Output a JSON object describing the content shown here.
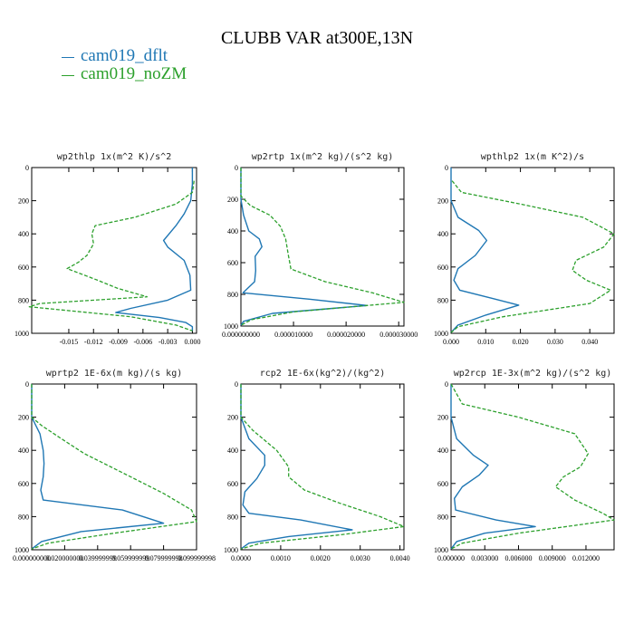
{
  "figure": {
    "title": "CLUBB VAR at300E,13N",
    "legend": [
      {
        "label": "cam019_dflt",
        "color": "#1f77b4"
      },
      {
        "label": "cam019_noZM",
        "color": "#2ca02c"
      }
    ]
  },
  "chart_data": [
    {
      "type": "line",
      "title": "wp2thlp  1x(m^2 K)/s^2",
      "xlim": [
        -0.0195,
        0.0005
      ],
      "ylim": [
        1000,
        0
      ],
      "xticks": [
        -0.015,
        -0.012,
        -0.009,
        -0.006,
        -0.003,
        0.0
      ],
      "xtick_labels": [
        "-0.015",
        "-0.012",
        "-0.009",
        "-0.006",
        "-0.003",
        "0.000"
      ],
      "yticks": [
        0,
        200,
        400,
        600,
        800,
        1000
      ],
      "series": [
        {
          "name": "cam019_dflt",
          "x": [
            0.0,
            0.0,
            -0.0002,
            -0.001,
            -0.002,
            -0.0035,
            -0.003,
            -0.001,
            -0.0003,
            -0.0002,
            -0.003,
            -0.0075,
            -0.0093,
            -0.004,
            -0.0008,
            0.0,
            0.0
          ],
          "y": [
            0,
            100,
            200,
            280,
            350,
            440,
            480,
            560,
            650,
            740,
            800,
            850,
            875,
            905,
            935,
            960,
            985
          ]
        },
        {
          "name": "cam019_noZM",
          "x": [
            0.0002,
            0.0,
            -0.002,
            -0.007,
            -0.0118,
            -0.0122,
            -0.012,
            -0.0128,
            -0.0138,
            -0.0152,
            -0.0136,
            -0.0115,
            -0.009,
            -0.0055,
            -0.0185,
            -0.0198,
            -0.0075,
            -0.002,
            0.0
          ],
          "y": [
            80,
            150,
            220,
            300,
            350,
            400,
            460,
            530,
            570,
            610,
            640,
            680,
            730,
            780,
            820,
            840,
            900,
            950,
            985
          ]
        }
      ]
    },
    {
      "type": "line",
      "title": "wp2rtp  1x(m^2 kg)/(s^2 kg)",
      "xlim": [
        0,
        3.1e-05
      ],
      "ylim": [
        1000,
        0
      ],
      "xticks": [
        0,
        1e-05,
        2e-05,
        3e-05
      ],
      "xtick_labels": [
        "0.000000000",
        "0.000010000",
        "0.000020000",
        "0.000030000"
      ],
      "yticks": [
        0,
        200,
        400,
        600,
        800,
        1000
      ],
      "series": [
        {
          "name": "cam019_dflt",
          "x": [
            0,
            0,
            5e-07,
            1.5e-06,
            3.5e-06,
            4e-06,
            2.7e-06,
            2.8e-06,
            2.6e-06,
            4e-07,
            1.3e-05,
            2.4e-05,
            6e-06,
            5e-07,
            0
          ],
          "y": [
            0,
            200,
            300,
            400,
            450,
            500,
            560,
            650,
            720,
            790,
            830,
            870,
            920,
            970,
            995
          ]
        },
        {
          "name": "cam019_noZM",
          "x": [
            0,
            0,
            1.8e-06,
            5.5e-06,
            7.5e-06,
            8.5e-06,
            9e-06,
            9.5e-06,
            1.6e-05,
            2.5e-05,
            3.1e-05,
            1e-05,
            2e-06,
            0
          ],
          "y": [
            0,
            180,
            240,
            300,
            370,
            450,
            550,
            640,
            720,
            790,
            850,
            910,
            960,
            995
          ]
        }
      ]
    },
    {
      "type": "line",
      "title": "wpthlp2  1x(m K^2)/s",
      "xlim": [
        0,
        0.047
      ],
      "ylim": [
        1000,
        0
      ],
      "xticks": [
        0.0,
        0.01,
        0.02,
        0.03,
        0.04
      ],
      "xtick_labels": [
        "0.000",
        "0.010",
        "0.020",
        "0.030",
        "0.040"
      ],
      "yticks": [
        0,
        200,
        400,
        600,
        800,
        1000
      ],
      "series": [
        {
          "name": "cam019_dflt",
          "x": [
            0,
            0,
            0.002,
            0.008,
            0.0103,
            0.007,
            0.002,
            0.0008,
            0.0025,
            0.012,
            0.0195,
            0.01,
            0.002,
            0
          ],
          "y": [
            0,
            200,
            300,
            380,
            440,
            530,
            610,
            680,
            740,
            790,
            830,
            890,
            950,
            995
          ]
        },
        {
          "name": "cam019_noZM",
          "x": [
            0.0003,
            0.003,
            0.02,
            0.038,
            0.047,
            0.044,
            0.036,
            0.035,
            0.039,
            0.046,
            0.04,
            0.015,
            0.002,
            0
          ],
          "y": [
            80,
            150,
            220,
            300,
            400,
            480,
            560,
            620,
            680,
            740,
            820,
            900,
            960,
            995
          ]
        }
      ]
    },
    {
      "type": "line",
      "title": "wprtp2  1E-6x(m kg)/(s kg)",
      "xlim": [
        0,
        0.1
      ],
      "ylim": [
        1000,
        0
      ],
      "xticks": [
        0.0,
        0.02,
        0.04,
        0.06,
        0.08,
        0.1
      ],
      "xtick_labels": [
        "0.000000000",
        "0.020000000",
        "0.039999999",
        "0.059999999",
        "0.079999998",
        "0.099999998"
      ],
      "yticks": [
        0,
        200,
        400,
        600,
        800,
        1000
      ],
      "series": [
        {
          "name": "cam019_dflt",
          "x": [
            0,
            0,
            0.005,
            0.007,
            0.0075,
            0.007,
            0.0055,
            0.007,
            0.055,
            0.08,
            0.03,
            0.006,
            0
          ],
          "y": [
            0,
            200,
            300,
            400,
            480,
            560,
            640,
            700,
            760,
            840,
            890,
            950,
            995
          ]
        },
        {
          "name": "cam019_noZM",
          "x": [
            0,
            0,
            0.006,
            0.018,
            0.032,
            0.048,
            0.064,
            0.08,
            0.097,
            0.1,
            0.05,
            0.01,
            0
          ],
          "y": [
            0,
            200,
            250,
            330,
            420,
            500,
            580,
            660,
            760,
            830,
            900,
            960,
            995
          ]
        }
      ]
    },
    {
      "type": "line",
      "title": "rcp2  1E-6x(kg^2)/(kg^2)",
      "xlim": [
        0,
        0.0041
      ],
      "ylim": [
        1000,
        0
      ],
      "xticks": [
        0.0,
        0.001,
        0.002,
        0.003,
        0.004
      ],
      "xtick_labels": [
        "0.0000",
        "0.0010",
        "0.0020",
        "0.0030",
        "0.0040"
      ],
      "yticks": [
        0,
        200,
        400,
        600,
        800,
        1000
      ],
      "series": [
        {
          "name": "cam019_dflt",
          "x": [
            0,
            0,
            0.0002,
            0.0006,
            0.0006,
            0.0004,
            0.0001,
            5e-05,
            0.0002,
            0.0015,
            0.0028,
            0.0012,
            0.0002,
            0
          ],
          "y": [
            0,
            200,
            330,
            430,
            490,
            570,
            650,
            730,
            780,
            820,
            880,
            920,
            960,
            995
          ]
        },
        {
          "name": "cam019_noZM",
          "x": [
            0,
            0,
            0.0003,
            0.0009,
            0.0012,
            0.0012,
            0.0016,
            0.0025,
            0.0035,
            0.0041,
            0.0025,
            0.0005,
            0
          ],
          "y": [
            0,
            200,
            280,
            400,
            500,
            560,
            640,
            720,
            800,
            860,
            910,
            960,
            995
          ]
        }
      ]
    },
    {
      "type": "line",
      "title": "wp2rcp  1E-3x(m^2 kg)/(s^2 kg)",
      "xlim": [
        0,
        0.0145
      ],
      "ylim": [
        1000,
        0
      ],
      "xticks": [
        0.0,
        0.003,
        0.006,
        0.009,
        0.012
      ],
      "xtick_labels": [
        "0.000000",
        "0.003000",
        "0.006000",
        "0.009000",
        "0.012000"
      ],
      "yticks": [
        0,
        200,
        400,
        600,
        800,
        1000
      ],
      "series": [
        {
          "name": "cam019_dflt",
          "x": [
            0,
            0,
            0.0005,
            0.002,
            0.0033,
            0.0025,
            0.001,
            0.0003,
            0.0004,
            0.004,
            0.0075,
            0.003,
            0.0005,
            0
          ],
          "y": [
            0,
            200,
            330,
            430,
            490,
            550,
            620,
            690,
            760,
            820,
            860,
            900,
            950,
            995
          ]
        },
        {
          "name": "cam019_noZM",
          "x": [
            0,
            0.001,
            0.006,
            0.011,
            0.0122,
            0.0115,
            0.01,
            0.0093,
            0.011,
            0.0135,
            0.0145,
            0.006,
            0.001,
            0
          ],
          "y": [
            0,
            120,
            200,
            300,
            420,
            500,
            560,
            620,
            700,
            780,
            820,
            900,
            960,
            995
          ]
        }
      ]
    }
  ]
}
